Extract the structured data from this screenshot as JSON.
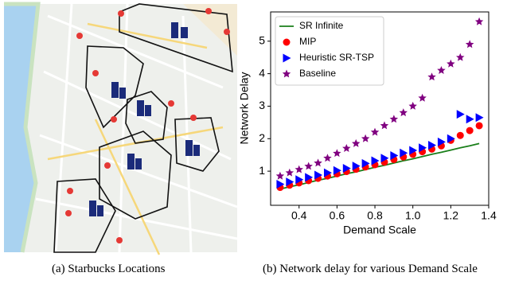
{
  "captions": {
    "a": "(a) Starbucks Locations",
    "b": "(b) Network delay for various Demand Scale"
  },
  "chart_data": {
    "type": "scatter",
    "x_label": "Demand Scale",
    "y_label": "Network Delay",
    "x": [
      0.3,
      0.35,
      0.4,
      0.45,
      0.5,
      0.55,
      0.6,
      0.65,
      0.7,
      0.75,
      0.8,
      0.85,
      0.9,
      0.95,
      1.0,
      1.05,
      1.1,
      1.15,
      1.2,
      1.25,
      1.3,
      1.35
    ],
    "xlim": [
      0.25,
      1.4
    ],
    "xticks": [
      0.4,
      0.6,
      0.8,
      {
        "value": 1,
        "label": "1.0"
      },
      1.2,
      1.4
    ],
    "ylim": [
      -0.05,
      5.9
    ],
    "yticks": [
      1,
      2,
      3,
      4,
      5
    ],
    "legend": "upper-left",
    "series": [
      {
        "name": "SR Infinite",
        "color": "#1a7f1a",
        "marker": "line",
        "values": [
          0.45,
          0.52,
          0.58,
          0.65,
          0.72,
          0.78,
          0.85,
          0.92,
          0.98,
          1.05,
          1.12,
          1.18,
          1.25,
          1.32,
          1.38,
          1.45,
          1.52,
          1.58,
          1.65,
          1.72,
          1.78,
          1.85
        ]
      },
      {
        "name": "MIP",
        "color": "#ff0000",
        "marker": "circle",
        "values": [
          0.5,
          0.57,
          0.64,
          0.71,
          0.78,
          0.85,
          0.92,
          0.99,
          1.06,
          1.13,
          1.2,
          1.28,
          1.36,
          1.44,
          1.52,
          1.6,
          1.68,
          1.78,
          1.95,
          2.1,
          2.25,
          2.4
        ]
      },
      {
        "name": "Heuristic SR-TSP",
        "color": "#0000ff",
        "marker": "triangle",
        "values": [
          0.6,
          0.67,
          0.74,
          0.81,
          0.88,
          0.95,
          1.02,
          1.09,
          1.16,
          1.24,
          1.32,
          1.4,
          1.48,
          1.56,
          1.64,
          1.72,
          1.8,
          1.9,
          2.0,
          2.75,
          2.6,
          2.65
        ]
      },
      {
        "name": "Baseline",
        "color": "#800080",
        "marker": "star",
        "values": [
          0.85,
          0.95,
          1.05,
          1.15,
          1.25,
          1.4,
          1.55,
          1.7,
          1.85,
          2.0,
          2.2,
          2.4,
          2.6,
          2.8,
          3.0,
          3.25,
          3.9,
          4.1,
          4.3,
          4.5,
          4.9,
          5.6
        ]
      }
    ]
  }
}
